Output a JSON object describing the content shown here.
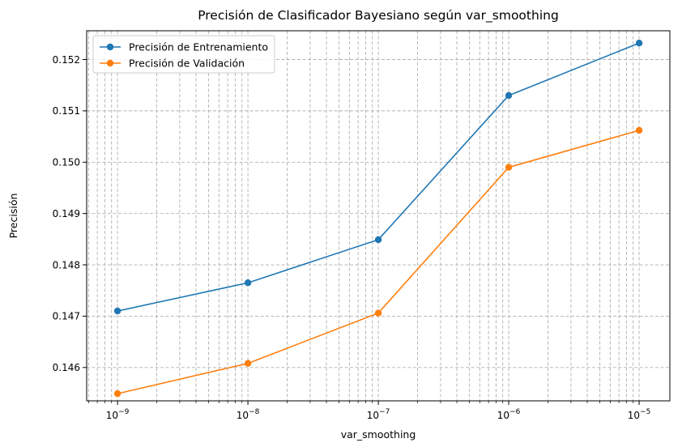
{
  "chart_data": {
    "type": "line",
    "title": "Precisión de Clasificador Bayesiano según var_smoothing",
    "xlabel": "var_smoothing",
    "ylabel": "Precisión",
    "x_scale": "log",
    "x": [
      1e-09,
      1e-08,
      1e-07,
      1e-06,
      1e-05
    ],
    "x_tick_labels": [
      {
        "value": 1e-09,
        "base": "10",
        "exp": "−9"
      },
      {
        "value": 1e-08,
        "base": "10",
        "exp": "−8"
      },
      {
        "value": 1e-07,
        "base": "10",
        "exp": "−7"
      },
      {
        "value": 1e-06,
        "base": "10",
        "exp": "−6"
      },
      {
        "value": 1e-05,
        "base": "10",
        "exp": "−5"
      }
    ],
    "xlim": [
      5.8e-10,
      1.72e-05
    ],
    "ylim": [
      0.14535,
      0.15256
    ],
    "y_ticks": [
      0.146,
      0.147,
      0.148,
      0.149,
      0.15,
      0.151,
      0.152
    ],
    "y_tick_labels": [
      "0.146",
      "0.147",
      "0.148",
      "0.149",
      "0.150",
      "0.151",
      "0.152"
    ],
    "grid": "both (major and minor)",
    "legend_position": "top-left",
    "series": [
      {
        "name": "Precisión de Entrenamiento",
        "color": "#1f77b4",
        "values": [
          0.1471,
          0.14765,
          0.14849,
          0.1513,
          0.15232
        ]
      },
      {
        "name": "Precisión de Validación",
        "color": "#ff7f0e",
        "values": [
          0.14549,
          0.14608,
          0.14706,
          0.1499,
          0.15062
        ]
      }
    ]
  }
}
